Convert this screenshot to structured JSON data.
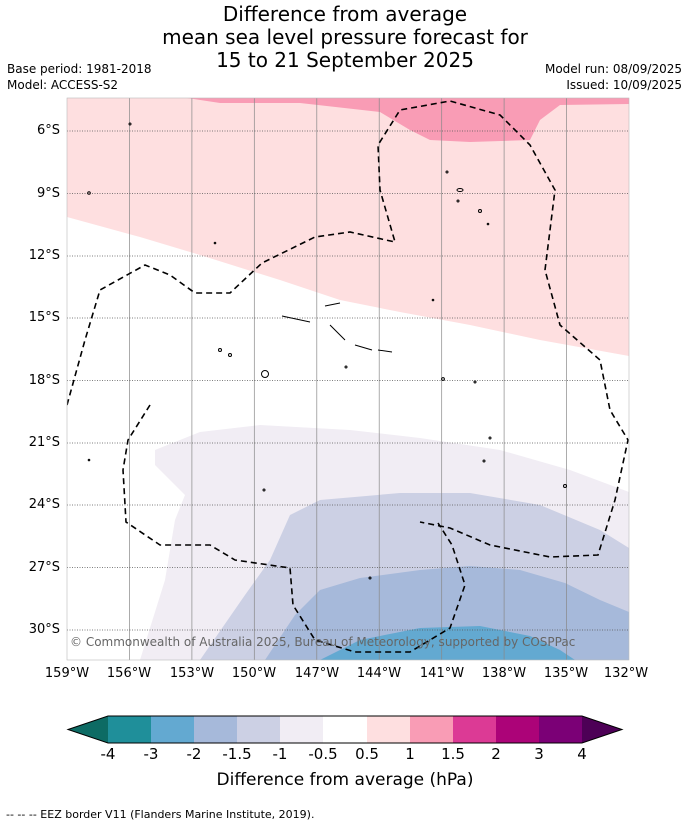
{
  "title": {
    "line1": "Difference from average",
    "line2": "mean sea level pressure forecast for",
    "line3": "15 to 21 September 2025"
  },
  "meta": {
    "base_period": "Base period: 1981-2018",
    "model": "Model: ACCESS-S2",
    "model_run": "Model run: 08/09/2025",
    "issued": "Issued: 10/09/2025"
  },
  "map": {
    "lat_labels": [
      "6°S",
      "9°S",
      "12°S",
      "15°S",
      "18°S",
      "21°S",
      "24°S",
      "27°S",
      "30°S"
    ],
    "lon_labels": [
      "159°W",
      "156°W",
      "153°W",
      "150°W",
      "147°W",
      "144°W",
      "141°W",
      "138°W",
      "135°W",
      "132°W"
    ],
    "copyright": "© Commonwealth of Australia 2025, Bureau of Meteorology, supported by COSPPac"
  },
  "colorbar": {
    "ticks": [
      "-4",
      "-3",
      "-2",
      "-1.5",
      "-1",
      "-0.5",
      "0.5",
      "1",
      "1.5",
      "2",
      "3",
      "4"
    ],
    "colors": [
      "#1f8f9a",
      "#63a9d1",
      "#a6b9da",
      "#ccd0e4",
      "#f1edf4",
      "#ffffff",
      "#fedfe0",
      "#f99cb5",
      "#dc3a95",
      "#ac0378",
      "#7b0076"
    ],
    "under_color": "#0d6b64",
    "over_color": "#4d0056",
    "title": "Difference from average (hPa)"
  },
  "footer": "--  --  -- EEZ border V11 (Flanders Marine Institute, 2019)."
}
